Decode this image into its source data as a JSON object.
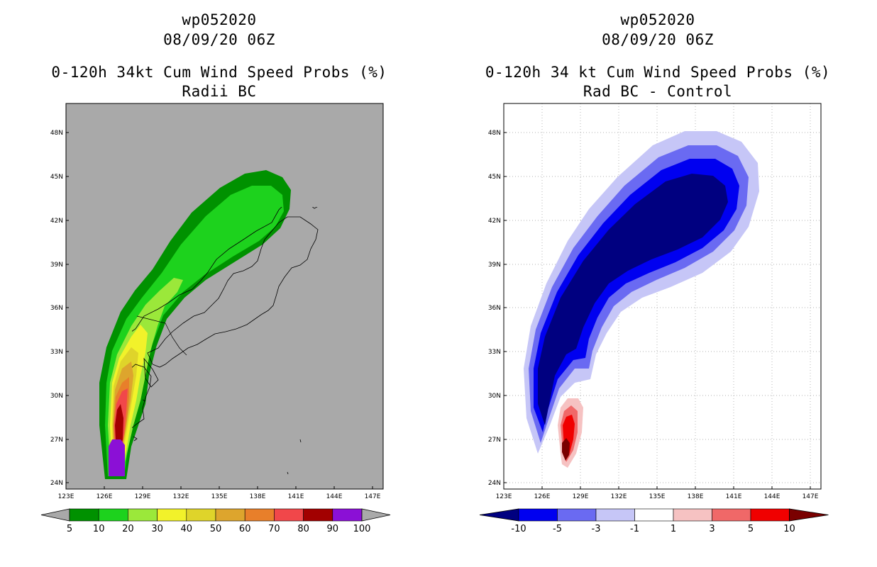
{
  "left": {
    "title_line1": "wp052020",
    "title_line2": "08/09/20 06Z",
    "title_line3": "0-120h 34kt Cum Wind Speed Probs (%)",
    "title_line4": "Radii BC",
    "map_background": "#a9a9a9",
    "colorbar": {
      "labels": [
        "5",
        "10",
        "20",
        "30",
        "40",
        "50",
        "60",
        "70",
        "80",
        "90",
        "100"
      ],
      "colors": [
        "#009100",
        "#1dd21d",
        "#9be83a",
        "#f2f22a",
        "#dfd42a",
        "#dda52d",
        "#e87f2a",
        "#f1474a",
        "#a20000",
        "#8b10d6"
      ],
      "end_color": "#a9a9a9"
    }
  },
  "right": {
    "title_line1": "wp052020",
    "title_line2": "08/09/20 06Z",
    "title_line3": "0-120h 34 kt Cum Wind Speed Probs (%)",
    "title_line4": "Rad BC - Control",
    "map_background": "#ffffff",
    "colorbar": {
      "labels": [
        "-10",
        "-5",
        "-3",
        "-1",
        "1",
        "3",
        "5",
        "10"
      ],
      "colors": [
        "#0000f0",
        "#6a6af2",
        "#c6c6f7",
        "#ffffff",
        "#f6c2c2",
        "#f06868",
        "#f00000"
      ],
      "end_left_color": "#000080",
      "end_right_color": "#7a0000"
    }
  },
  "axes": {
    "lat_labels": [
      "48N",
      "45N",
      "42N",
      "39N",
      "36N",
      "33N",
      "30N",
      "27N",
      "24N"
    ],
    "lon_labels": [
      "123E",
      "126E",
      "129E",
      "132E",
      "135E",
      "138E",
      "141E",
      "144E",
      "147E"
    ]
  }
}
